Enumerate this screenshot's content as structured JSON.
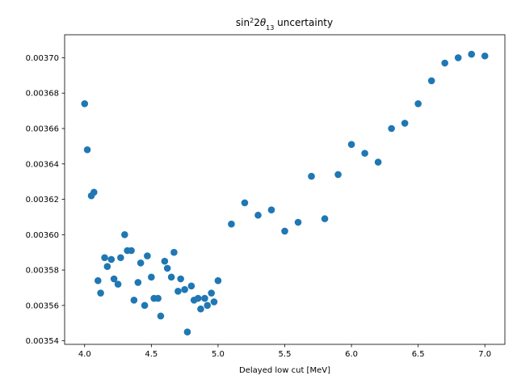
{
  "chart_data": {
    "type": "scatter",
    "title": "sin²2θ₁₃ uncertainty",
    "xlabel": "Delayed low cut [MeV]",
    "ylabel": "",
    "xlim": [
      3.85,
      7.15
    ],
    "ylim": [
      0.003538,
      0.003713
    ],
    "xticks": [
      4.0,
      4.5,
      5.0,
      5.5,
      6.0,
      6.5,
      7.0
    ],
    "xtick_labels": [
      "4.0",
      "4.5",
      "5.0",
      "5.5",
      "6.0",
      "6.5",
      "7.0"
    ],
    "yticks": [
      0.00354,
      0.00356,
      0.00358,
      0.0036,
      0.00362,
      0.00364,
      0.00366,
      0.00368,
      0.0037
    ],
    "ytick_labels": [
      "0.00354",
      "0.00356",
      "0.00358",
      "0.00360",
      "0.00362",
      "0.00364",
      "0.00366",
      "0.00368",
      "0.00370"
    ],
    "grid": false,
    "marker_color": "#1f77b4",
    "points": [
      [
        4.0,
        0.003674
      ],
      [
        4.02,
        0.003648
      ],
      [
        4.05,
        0.003622
      ],
      [
        4.07,
        0.003624
      ],
      [
        4.1,
        0.003574
      ],
      [
        4.12,
        0.003567
      ],
      [
        4.15,
        0.003587
      ],
      [
        4.17,
        0.003582
      ],
      [
        4.2,
        0.003586
      ],
      [
        4.22,
        0.003575
      ],
      [
        4.25,
        0.003572
      ],
      [
        4.27,
        0.003587
      ],
      [
        4.3,
        0.0036
      ],
      [
        4.32,
        0.003591
      ],
      [
        4.35,
        0.003591
      ],
      [
        4.37,
        0.003563
      ],
      [
        4.4,
        0.003573
      ],
      [
        4.42,
        0.003584
      ],
      [
        4.45,
        0.00356
      ],
      [
        4.47,
        0.003588
      ],
      [
        4.5,
        0.003576
      ],
      [
        4.52,
        0.003564
      ],
      [
        4.55,
        0.003564
      ],
      [
        4.57,
        0.003554
      ],
      [
        4.6,
        0.003585
      ],
      [
        4.62,
        0.003581
      ],
      [
        4.65,
        0.003576
      ],
      [
        4.67,
        0.00359
      ],
      [
        4.7,
        0.003568
      ],
      [
        4.72,
        0.003575
      ],
      [
        4.75,
        0.003569
      ],
      [
        4.77,
        0.003545
      ],
      [
        4.8,
        0.003571
      ],
      [
        4.82,
        0.003563
      ],
      [
        4.85,
        0.003564
      ],
      [
        4.87,
        0.003558
      ],
      [
        4.9,
        0.003564
      ],
      [
        4.92,
        0.00356
      ],
      [
        4.95,
        0.003567
      ],
      [
        4.97,
        0.003562
      ],
      [
        5.0,
        0.003574
      ],
      [
        5.1,
        0.003606
      ],
      [
        5.2,
        0.003618
      ],
      [
        5.3,
        0.003611
      ],
      [
        5.4,
        0.003614
      ],
      [
        5.5,
        0.003602
      ],
      [
        5.6,
        0.003607
      ],
      [
        5.7,
        0.003633
      ],
      [
        5.8,
        0.003609
      ],
      [
        5.9,
        0.003634
      ],
      [
        6.0,
        0.003651
      ],
      [
        6.1,
        0.003646
      ],
      [
        6.2,
        0.003641
      ],
      [
        6.3,
        0.00366
      ],
      [
        6.4,
        0.003663
      ],
      [
        6.5,
        0.003674
      ],
      [
        6.6,
        0.003687
      ],
      [
        6.7,
        0.003697
      ],
      [
        6.8,
        0.0037
      ],
      [
        6.9,
        0.003702
      ],
      [
        7.0,
        0.003701
      ]
    ]
  }
}
